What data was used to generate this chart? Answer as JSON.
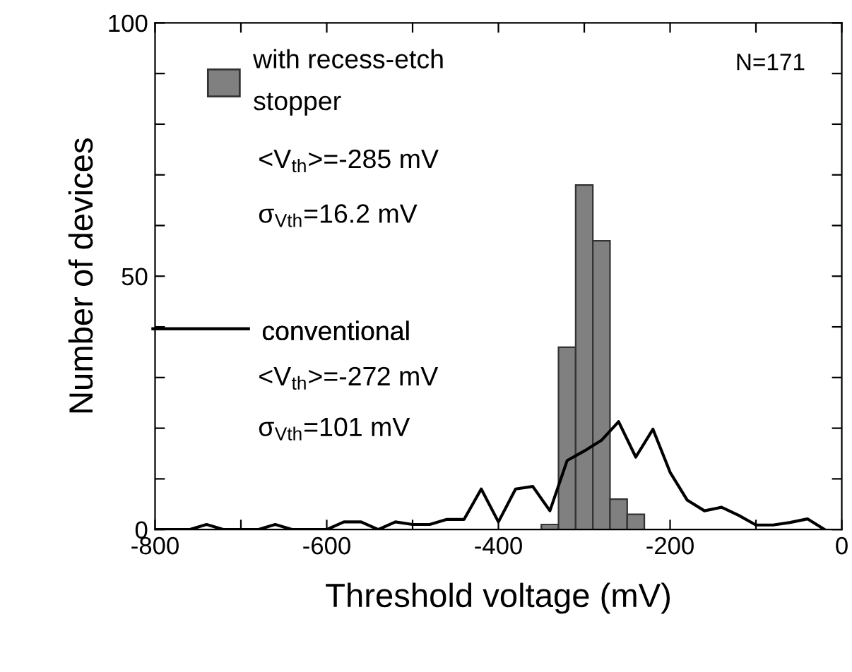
{
  "chart_data": {
    "type": "histogram",
    "xlabel": "Threshold voltage (mV)",
    "ylabel": "Number of devices",
    "series": [
      {
        "name": "with recess-etch stopper",
        "color": "#808080",
        "bins": [
          -350,
          -330,
          -310,
          -290,
          -270,
          -250,
          -230
        ],
        "values": [
          1,
          36,
          68,
          57,
          6,
          3
        ]
      },
      {
        "type": "line",
        "name": "conventional",
        "color": "#000000",
        "x": [
          -800,
          -780,
          -760,
          -740,
          -720,
          -700,
          -680,
          -660,
          -640,
          -620,
          -600,
          -580,
          -560,
          -540,
          -520,
          -500,
          -480,
          -460,
          -440,
          -420,
          -400,
          -380,
          -360,
          -340,
          -320,
          -300,
          -280,
          -260,
          -240,
          -220,
          -200,
          -180,
          -160,
          -140,
          -120,
          -100,
          -80,
          -60,
          -40,
          -20
        ],
        "values": [
          0,
          0,
          0,
          1,
          0,
          0,
          0,
          1,
          0,
          0,
          0,
          1.5,
          1.5,
          0,
          1.5,
          1,
          1,
          2,
          2,
          8,
          1.5,
          8,
          8.5,
          3.7,
          13.6,
          15.5,
          17.6,
          21.3,
          14.3,
          19.8,
          11.3,
          5.8,
          3.7,
          4.4,
          2.8,
          0.9,
          0.9,
          1.4,
          2.1,
          0
        ]
      }
    ],
    "annotations": [
      "<V$_{th}$>=-285 mV",
      "σ$_{Vth}$=16.2 mV",
      "<V$_{th}$>=-272 mV",
      "σ$_{Vth}$=101 mV",
      "N=171"
    ],
    "xlim": [
      -800,
      0
    ],
    "ylim": [
      0,
      100
    ],
    "xticks": [
      -800,
      {
        "value": -700,
        "label": null
      },
      -600,
      {
        "value": -500,
        "label": null
      },
      -400,
      {
        "value": -300,
        "label": null
      },
      -200,
      {
        "value": -100,
        "label": null
      },
      0
    ],
    "yticks": [
      0,
      {
        "value": 10,
        "label": null
      },
      {
        "value": 20,
        "label": null
      },
      {
        "value": 30,
        "label": null
      },
      {
        "value": 40,
        "label": null
      },
      50,
      {
        "value": 60,
        "label": null
      },
      {
        "value": 70,
        "label": null
      },
      {
        "value": 80,
        "label": null
      },
      {
        "value": 90,
        "label": null
      },
      100
    ],
    "grid": false,
    "legend": "top left"
  }
}
